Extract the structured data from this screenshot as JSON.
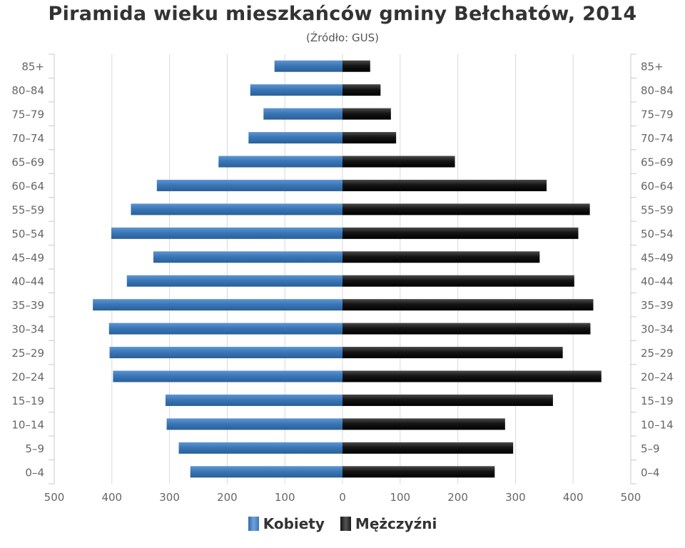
{
  "title": "Piramida wieku mieszkańców gminy Bełchatów, 2014",
  "subtitle": "(Źródło: GUS)",
  "legend": {
    "women": "Kobiety",
    "men": "Mężczyźni"
  },
  "colors": {
    "women": "#3a77b8",
    "men": "#1a1a1a",
    "grid": "#d9d9d9"
  },
  "chart_data": {
    "type": "bar",
    "orientation": "horizontal-pyramid",
    "categories": [
      "85+",
      "80–84",
      "75–79",
      "70–74",
      "65–69",
      "60–64",
      "55–59",
      "50–54",
      "45–49",
      "40–44",
      "35–39",
      "30–34",
      "25–29",
      "20–24",
      "15–19",
      "10–14",
      "5–9",
      "0–4"
    ],
    "series": [
      {
        "name": "Kobiety",
        "values": [
          118,
          160,
          137,
          163,
          215,
          322,
          367,
          401,
          328,
          374,
          433,
          405,
          404,
          398,
          307,
          305,
          284,
          264
        ]
      },
      {
        "name": "Mężczyźni",
        "values": [
          48,
          66,
          84,
          93,
          195,
          354,
          429,
          409,
          342,
          402,
          435,
          430,
          382,
          449,
          365,
          282,
          296,
          264
        ]
      }
    ],
    "xlim": [
      -500,
      500
    ],
    "xticks": [
      "500",
      "400",
      "300",
      "200",
      "100",
      "0",
      "100",
      "200",
      "300",
      "400",
      "500"
    ],
    "grid": true,
    "legend_position": "bottom"
  }
}
